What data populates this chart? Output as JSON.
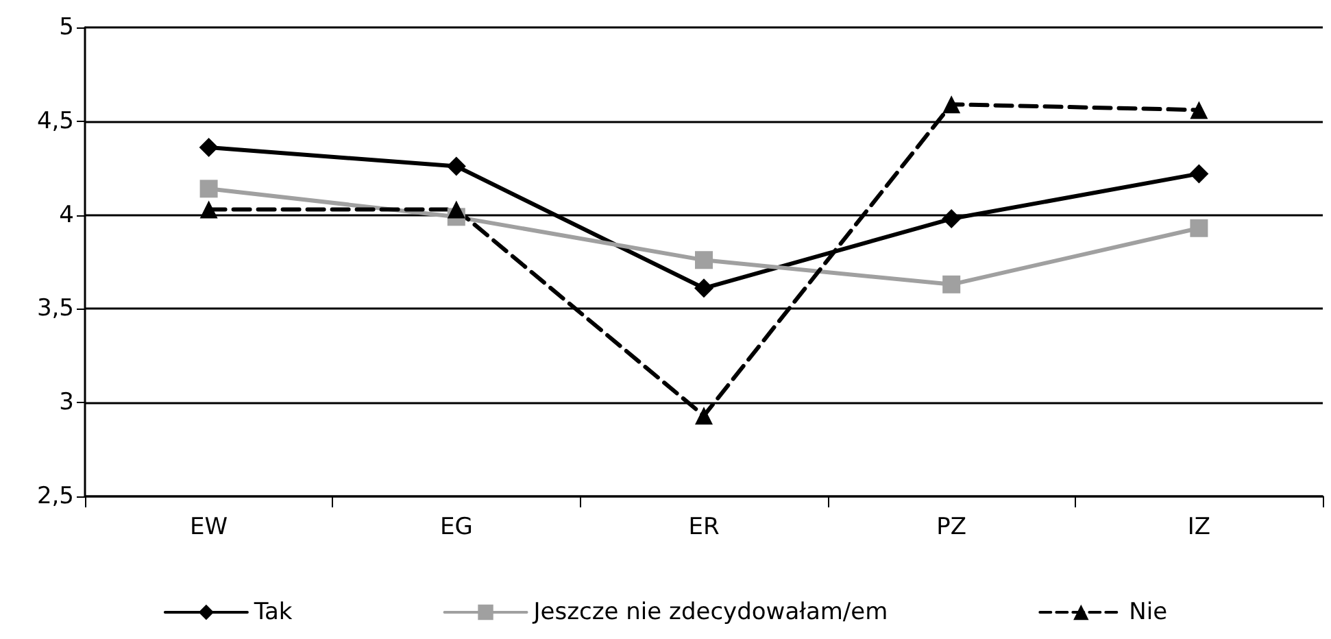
{
  "chart_data": {
    "type": "line",
    "categories": [
      "EW",
      "EG",
      "ER",
      "PZ",
      "IZ"
    ],
    "series": [
      {
        "name": "Tak",
        "color": "#000000",
        "marker": "diamond",
        "line_style": "solid",
        "values": [
          4.36,
          4.26,
          3.61,
          3.98,
          4.22
        ]
      },
      {
        "name": "Jeszcze nie zdecydowałam/em",
        "color": "#a0a0a0",
        "marker": "square",
        "line_style": "solid",
        "values": [
          4.14,
          3.99,
          3.76,
          3.63,
          3.93
        ]
      },
      {
        "name": "Nie",
        "color": "#000000",
        "marker": "triangle",
        "line_style": "dashed",
        "values": [
          4.03,
          4.03,
          2.93,
          4.59,
          4.56
        ]
      }
    ],
    "ylim": [
      2.5,
      5
    ],
    "yticks": [
      {
        "value": 2.5,
        "label": "2,5"
      },
      3,
      {
        "value": 3.5,
        "label": "3,5"
      },
      4,
      {
        "value": 4.5,
        "label": "4,5"
      },
      5
    ],
    "grid": "y",
    "legend": "bottom"
  }
}
